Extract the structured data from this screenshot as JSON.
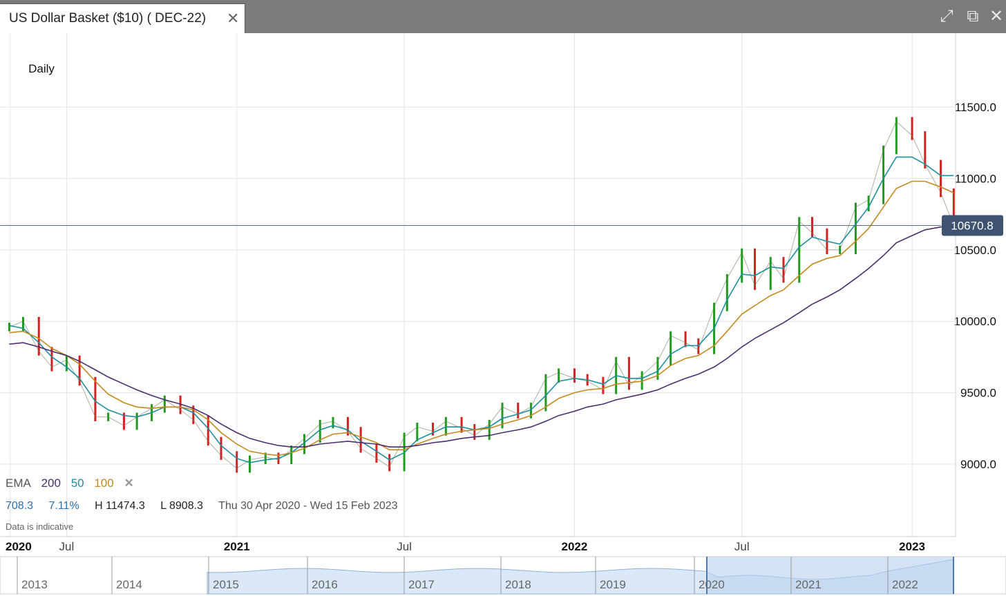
{
  "window": {
    "tab_title": "US Dollar Basket ($10) ( DEC-22)",
    "tab_close": "✕",
    "icons": [
      "expand-icon",
      "popout-icon",
      "close-icon"
    ]
  },
  "toolbar": {
    "period": "Daily"
  },
  "legend": {
    "label": "EMA",
    "ema200": "200",
    "ema50": "50",
    "ema100": "100",
    "remove": "✕",
    "colors": {
      "ema200": "#4a2d6e",
      "ema50": "#1c8f9e",
      "ema100": "#c4881c",
      "label": "#555555"
    }
  },
  "stats": {
    "change": "708.3",
    "change_pct": "7.11%",
    "high": "H 11474.3",
    "low": "L 8908.3",
    "range": "Thu 30 Apr 2020 - Wed 15 Feb 2023",
    "note": "Data is indicative"
  },
  "chart_data": {
    "type": "line",
    "title": "",
    "xlabel": "",
    "ylabel": "",
    "ylim": [
      8500,
      12000
    ],
    "y_ticks": [
      {
        "value": 9000,
        "label": "9000.0"
      },
      {
        "value": 9500,
        "label": "9500.0"
      },
      {
        "value": 10000,
        "label": "10000.0"
      },
      {
        "value": 10500,
        "label": "10500.0"
      },
      {
        "value": 11000,
        "label": "11000.0"
      },
      {
        "value": 11500,
        "label": "11500.0"
      }
    ],
    "x_ticks": [
      "2020",
      "Jul",
      "2021",
      "Jul",
      "2022",
      "Jul",
      "2023"
    ],
    "x_tick_dates": [
      "2020-05-01",
      "2020-07-01",
      "2021-01-01",
      "2021-07-01",
      "2022-01-01",
      "2022-07-01",
      "2023-01-01"
    ],
    "x_range": [
      "2020-04-20",
      "2023-02-17"
    ],
    "current_price": {
      "value": 10670.8,
      "label": "10670.8"
    },
    "price_color_up": "#1e9a1e",
    "price_color_down": "#d42020",
    "price_dates": [
      "2020-04-30",
      "2020-05-15",
      "2020-06-01",
      "2020-06-15",
      "2020-07-01",
      "2020-07-15",
      "2020-08-01",
      "2020-08-15",
      "2020-09-01",
      "2020-09-15",
      "2020-10-01",
      "2020-10-15",
      "2020-11-01",
      "2020-11-15",
      "2020-12-01",
      "2020-12-15",
      "2021-01-01",
      "2021-01-15",
      "2021-02-01",
      "2021-02-15",
      "2021-03-01",
      "2021-03-15",
      "2021-04-01",
      "2021-04-15",
      "2021-05-01",
      "2021-05-15",
      "2021-06-01",
      "2021-06-15",
      "2021-07-01",
      "2021-07-15",
      "2021-08-01",
      "2021-08-15",
      "2021-09-01",
      "2021-09-15",
      "2021-10-01",
      "2021-10-15",
      "2021-11-01",
      "2021-11-15",
      "2021-12-01",
      "2021-12-15",
      "2022-01-01",
      "2022-01-15",
      "2022-02-01",
      "2022-02-15",
      "2022-03-01",
      "2022-03-15",
      "2022-04-01",
      "2022-04-15",
      "2022-05-01",
      "2022-05-15",
      "2022-06-01",
      "2022-06-15",
      "2022-07-01",
      "2022-07-15",
      "2022-08-01",
      "2022-08-15",
      "2022-09-01",
      "2022-09-15",
      "2022-10-01",
      "2022-10-15",
      "2022-11-01",
      "2022-11-15",
      "2022-12-01",
      "2022-12-15",
      "2023-01-01",
      "2023-01-15",
      "2023-02-01",
      "2023-02-15"
    ],
    "price_values": [
      9960,
      10000,
      9790,
      9680,
      9730,
      9580,
      9330,
      9330,
      9270,
      9330,
      9390,
      9450,
      9380,
      9310,
      9160,
      9060,
      8970,
      9030,
      9050,
      9030,
      9100,
      9180,
      9280,
      9300,
      9230,
      9110,
      9040,
      8980,
      9190,
      9260,
      9230,
      9300,
      9250,
      9200,
      9280,
      9400,
      9350,
      9400,
      9600,
      9640,
      9600,
      9580,
      9520,
      9720,
      9550,
      9620,
      9720,
      9900,
      9850,
      9800,
      10100,
      10300,
      10480,
      10250,
      10420,
      10300,
      10700,
      10620,
      10500,
      10500,
      10800,
      10850,
      11200,
      11400,
      11300,
      11100,
      10900,
      10670
    ],
    "series": [
      {
        "name": "50",
        "values": [
          9970,
          9950,
          9850,
          9750,
          9680,
          9600,
          9440,
          9380,
          9340,
          9330,
          9360,
          9400,
          9400,
          9360,
          9250,
          9130,
          9040,
          9010,
          9030,
          9040,
          9080,
          9150,
          9240,
          9270,
          9240,
          9160,
          9090,
          9030,
          9080,
          9170,
          9220,
          9260,
          9260,
          9240,
          9260,
          9320,
          9350,
          9380,
          9480,
          9580,
          9600,
          9590,
          9560,
          9620,
          9600,
          9600,
          9650,
          9770,
          9830,
          9830,
          9950,
          10150,
          10330,
          10320,
          10380,
          10370,
          10520,
          10590,
          10560,
          10540,
          10680,
          10800,
          11000,
          11150,
          11150,
          11100,
          11020,
          11020
        ]
      },
      {
        "name": "100",
        "values": [
          9920,
          9930,
          9880,
          9810,
          9760,
          9700,
          9580,
          9490,
          9430,
          9400,
          9390,
          9400,
          9400,
          9380,
          9310,
          9220,
          9140,
          9090,
          9070,
          9060,
          9080,
          9110,
          9170,
          9210,
          9220,
          9190,
          9150,
          9100,
          9100,
          9140,
          9180,
          9210,
          9230,
          9240,
          9250,
          9280,
          9310,
          9340,
          9400,
          9460,
          9500,
          9520,
          9530,
          9560,
          9570,
          9580,
          9620,
          9690,
          9740,
          9760,
          9830,
          9930,
          10050,
          10110,
          10180,
          10220,
          10320,
          10400,
          10440,
          10460,
          10560,
          10650,
          10800,
          10930,
          10980,
          10980,
          10940,
          10900
        ]
      },
      {
        "name": "200",
        "values": [
          9840,
          9850,
          9820,
          9790,
          9760,
          9720,
          9660,
          9610,
          9560,
          9520,
          9480,
          9450,
          9420,
          9390,
          9340,
          9280,
          9220,
          9180,
          9150,
          9130,
          9120,
          9120,
          9140,
          9150,
          9160,
          9150,
          9140,
          9120,
          9120,
          9130,
          9150,
          9160,
          9180,
          9190,
          9200,
          9220,
          9240,
          9260,
          9300,
          9340,
          9370,
          9400,
          9420,
          9450,
          9470,
          9490,
          9520,
          9560,
          9600,
          9630,
          9680,
          9740,
          9820,
          9880,
          9940,
          9990,
          10060,
          10120,
          10170,
          10220,
          10300,
          10370,
          10460,
          10550,
          10600,
          10640,
          10660,
          10680
        ]
      }
    ],
    "navigator": {
      "labels": [
        "2013",
        "2014",
        "2015",
        "2016",
        "2017",
        "2018",
        "2019",
        "2020",
        "2021",
        "2022"
      ],
      "selected_from": "2020",
      "selected_to": "2023"
    }
  }
}
